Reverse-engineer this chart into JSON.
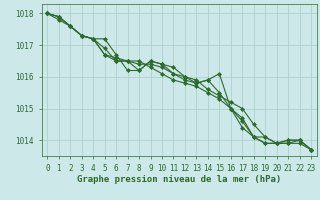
{
  "title": "Graphe pression niveau de la mer (hPa)",
  "x": [
    0,
    1,
    2,
    3,
    4,
    5,
    6,
    7,
    8,
    9,
    10,
    11,
    12,
    13,
    14,
    15,
    16,
    17,
    18,
    19,
    20,
    21,
    22,
    23
  ],
  "series": [
    [
      1018.0,
      1017.9,
      1017.6,
      1017.3,
      1017.2,
      1016.9,
      1016.5,
      1016.5,
      1016.4,
      1016.4,
      1016.3,
      1016.1,
      1015.9,
      1015.8,
      1015.9,
      1015.5,
      1015.0,
      1014.4,
      1014.1,
      1013.9,
      1013.9,
      1013.9,
      1013.9,
      1013.7
    ],
    [
      1018.0,
      1017.9,
      1017.6,
      1017.3,
      1017.2,
      1016.7,
      1016.6,
      1016.5,
      1016.5,
      1016.3,
      1016.1,
      1015.9,
      1015.8,
      1015.7,
      1015.5,
      1015.3,
      1015.0,
      1014.6,
      1014.1,
      1013.9,
      1013.9,
      1013.9,
      1014.0,
      1013.7
    ],
    [
      1018.0,
      1017.9,
      1017.6,
      1017.3,
      1017.2,
      1016.7,
      1016.5,
      1016.5,
      1016.2,
      1016.5,
      1016.4,
      1016.1,
      1016.0,
      1015.9,
      1015.6,
      1015.4,
      1015.2,
      1015.0,
      1014.5,
      1014.1,
      1013.9,
      1014.0,
      1014.0,
      1013.7
    ],
    [
      1018.0,
      1017.8,
      1017.6,
      1017.3,
      1017.2,
      1017.2,
      1016.7,
      1016.2,
      1016.2,
      1016.5,
      1016.4,
      1016.3,
      1016.0,
      1015.8,
      1015.9,
      1016.1,
      1015.0,
      1014.7,
      1014.1,
      1014.1,
      1013.9,
      1014.0,
      1014.0,
      1013.7
    ]
  ],
  "line_color": "#2d6a2d",
  "bg_color": "#cce8e8",
  "grid_color": "#aacccc",
  "text_color": "#2d6a2d",
  "ylim": [
    1013.5,
    1018.3
  ],
  "yticks": [
    1014,
    1015,
    1016,
    1017,
    1018
  ],
  "marker": "D",
  "marker_size": 2.0,
  "linewidth": 0.8,
  "title_fontsize": 6.5,
  "tick_fontsize": 5.5
}
